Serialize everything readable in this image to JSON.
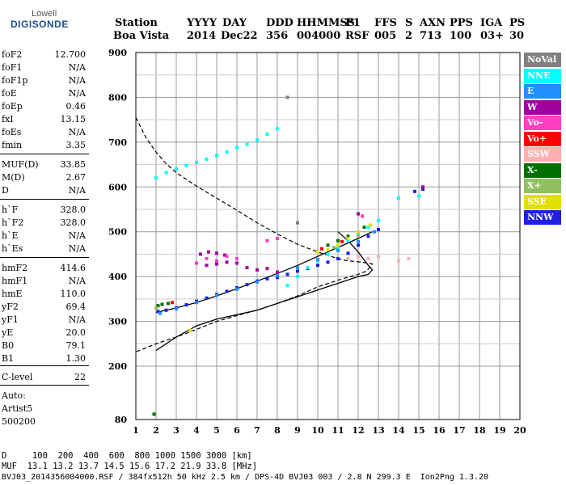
{
  "logo": {
    "line1": "Lowell",
    "line2": "DIGISONDE"
  },
  "header": {
    "labels": [
      "Station",
      "YYYY",
      "DAY",
      "DDD",
      "HHMMSS",
      "P1",
      "FFS",
      "S",
      "AXN",
      "PPS",
      "IGA",
      "PS"
    ],
    "values": [
      "Boa Vista",
      "2014",
      "Dec22",
      "356",
      "004000",
      "RSF",
      "005",
      "2",
      "713",
      "100",
      "03+",
      "30"
    ]
  },
  "params": [
    {
      "name": "foF2",
      "value": "12.700"
    },
    {
      "name": "foF1",
      "value": "N/A"
    },
    {
      "name": "foF1p",
      "value": "N/A"
    },
    {
      "name": "foE",
      "value": "N/A"
    },
    {
      "name": "foEp",
      "value": "0.46"
    },
    {
      "name": "fxI",
      "value": "13.15"
    },
    {
      "name": "foEs",
      "value": "N/A"
    },
    {
      "name": "fmin",
      "value": "3.35"
    },
    {
      "name": "MUF(D)",
      "value": "33.85"
    },
    {
      "name": "M(D)",
      "value": "2.67"
    },
    {
      "name": "D",
      "value": "N/A"
    },
    {
      "name": "h`F",
      "value": "328.0"
    },
    {
      "name": "h`F2",
      "value": "328.0"
    },
    {
      "name": "h`E",
      "value": "N/A"
    },
    {
      "name": "h`Es",
      "value": "N/A"
    },
    {
      "name": "hmF2",
      "value": "414.6"
    },
    {
      "name": "hmF1",
      "value": "N/A"
    },
    {
      "name": "hmE",
      "value": "110.0"
    },
    {
      "name": "yF2",
      "value": "69.4"
    },
    {
      "name": "yF1",
      "value": "N/A"
    },
    {
      "name": "yE",
      "value": "20.0"
    },
    {
      "name": "B0",
      "value": "79.1"
    },
    {
      "name": "B1",
      "value": "1.30"
    },
    {
      "name": "C-level",
      "value": "22"
    }
  ],
  "auto": {
    "line1": "Auto:",
    "line2": "Artist5",
    "line3": "500200"
  },
  "footer": {
    "d_row": "D     100  200  400  600  800 1000 1500 3000 [km]",
    "muf_row": "MUF  13.1 13.2 13.7 14.5 15.6 17.2 21.9 33.8 [MHz]",
    "file_row": "BVJ03_2014356004000.RSF / 384fx512h 50 kHz 2.5 km / DPS-4D BVJ03 003 / 2.8 N 299.3 E  Ion2Png 1.3.20"
  },
  "legend": [
    {
      "label": "NoVal",
      "color": "#808080"
    },
    {
      "label": "NNE",
      "color": "#00ffff"
    },
    {
      "label": "E",
      "color": "#1e90ff"
    },
    {
      "label": "W",
      "color": "#a000a0"
    },
    {
      "label": "Vo-",
      "color": "#ff40c0"
    },
    {
      "label": "Vo+",
      "color": "#ff0000"
    },
    {
      "label": "SSW",
      "color": "#ffb0b0"
    },
    {
      "label": "X-",
      "color": "#007000"
    },
    {
      "label": "X+",
      "color": "#90c060"
    },
    {
      "label": "SSE",
      "color": "#e0e000"
    },
    {
      "label": "NNW",
      "color": "#2020e0"
    }
  ],
  "chart_data": {
    "type": "scatter",
    "title": "",
    "xlabel": "",
    "ylabel": "",
    "xlim": [
      1,
      20
    ],
    "ylim": [
      80,
      900
    ],
    "x_ticks": [
      1,
      2,
      3,
      4,
      5,
      6,
      7,
      8,
      9,
      10,
      11,
      12,
      13,
      14,
      15,
      16,
      17,
      18,
      19,
      20
    ],
    "y_ticks": [
      80,
      200,
      300,
      400,
      500,
      600,
      700,
      800,
      900
    ],
    "grid": true,
    "legend_position": "right",
    "series": [
      {
        "color": "#2020e0",
        "points": [
          [
            2.1,
            322
          ],
          [
            2.5,
            325
          ],
          [
            3.0,
            330
          ],
          [
            3.5,
            337
          ],
          [
            4.0,
            345
          ],
          [
            4.5,
            352
          ],
          [
            5.0,
            360
          ],
          [
            5.5,
            367
          ],
          [
            6.0,
            375
          ],
          [
            6.5,
            382
          ],
          [
            7.0,
            390
          ],
          [
            7.5,
            395
          ],
          [
            8.0,
            398
          ],
          [
            8.5,
            405
          ],
          [
            9.0,
            412
          ],
          [
            9.5,
            418
          ],
          [
            10.0,
            425
          ],
          [
            10.5,
            432
          ],
          [
            11.0,
            440
          ],
          [
            11.5,
            452
          ],
          [
            12.0,
            470
          ],
          [
            12.5,
            490
          ],
          [
            13.0,
            505
          ],
          [
            14.8,
            590
          ],
          [
            15.2,
            595
          ]
        ]
      },
      {
        "color": "#00ffff",
        "points": [
          [
            2.0,
            620
          ],
          [
            2.5,
            632
          ],
          [
            3.0,
            640
          ],
          [
            3.5,
            648
          ],
          [
            4.0,
            655
          ],
          [
            4.5,
            662
          ],
          [
            5.0,
            670
          ],
          [
            5.5,
            678
          ],
          [
            6.0,
            688
          ],
          [
            6.5,
            695
          ],
          [
            7.0,
            705
          ],
          [
            7.5,
            718
          ],
          [
            8.0,
            730
          ],
          [
            8.5,
            380
          ],
          [
            9.0,
            400
          ],
          [
            9.5,
            420
          ],
          [
            10.0,
            435
          ],
          [
            10.5,
            450
          ],
          [
            11.0,
            465
          ],
          [
            11.5,
            480
          ],
          [
            12.0,
            495
          ],
          [
            12.5,
            510
          ],
          [
            13.0,
            525
          ],
          [
            14.0,
            575
          ],
          [
            15.0,
            580
          ]
        ]
      },
      {
        "color": "#1e90ff",
        "points": [
          [
            2.2,
            318
          ],
          [
            3.0,
            328
          ],
          [
            4.0,
            342
          ],
          [
            5.0,
            358
          ],
          [
            6.0,
            372
          ],
          [
            7.0,
            388
          ],
          [
            8.0,
            402
          ],
          [
            9.0,
            420
          ],
          [
            10.0,
            438
          ],
          [
            11.0,
            458
          ],
          [
            12.0,
            478
          ],
          [
            12.8,
            500
          ]
        ]
      },
      {
        "color": "#a000a0",
        "points": [
          [
            4.2,
            450
          ],
          [
            4.6,
            455
          ],
          [
            5.0,
            452
          ],
          [
            5.4,
            448
          ],
          [
            4.5,
            425
          ],
          [
            5.0,
            428
          ],
          [
            5.5,
            432
          ],
          [
            6.0,
            430
          ],
          [
            6.5,
            420
          ],
          [
            7.0,
            415
          ],
          [
            7.5,
            418
          ],
          [
            8.0,
            410
          ],
          [
            12.0,
            540
          ],
          [
            15.2,
            600
          ]
        ]
      },
      {
        "color": "#ff40c0",
        "points": [
          [
            4.0,
            430
          ],
          [
            4.5,
            440
          ],
          [
            5.0,
            435
          ],
          [
            5.5,
            445
          ],
          [
            6.0,
            440
          ],
          [
            7.5,
            480
          ],
          [
            8.0,
            485
          ],
          [
            12.2,
            535
          ]
        ]
      },
      {
        "color": "#007000",
        "points": [
          [
            2.1,
            335
          ],
          [
            2.3,
            338
          ],
          [
            2.6,
            340
          ],
          [
            10.5,
            470
          ],
          [
            11.0,
            480
          ],
          [
            11.5,
            490
          ],
          [
            12.3,
            510
          ],
          [
            1.9,
            92
          ]
        ]
      },
      {
        "color": "#e0e000",
        "points": [
          [
            10.0,
            455
          ],
          [
            10.5,
            460
          ],
          [
            11.0,
            470
          ],
          [
            11.5,
            485
          ],
          [
            12.0,
            500
          ],
          [
            12.6,
            515
          ],
          [
            3.7,
            280
          ]
        ]
      },
      {
        "color": "#ffb0b0",
        "points": [
          [
            11.5,
            440
          ],
          [
            12.0,
            445
          ],
          [
            12.5,
            440
          ],
          [
            13.0,
            445
          ],
          [
            14.0,
            435
          ],
          [
            14.5,
            440
          ]
        ]
      },
      {
        "color": "#ff0000",
        "points": [
          [
            2.8,
            342
          ],
          [
            10.2,
            462
          ],
          [
            11.2,
            478
          ]
        ]
      },
      {
        "color": "#90c060",
        "points": [
          [
            2.0,
            330
          ],
          [
            10.8,
            465
          ],
          [
            12.0,
            490
          ]
        ]
      },
      {
        "color": "#808080",
        "points": [
          [
            8.5,
            800
          ],
          [
            9.0,
            520
          ]
        ]
      }
    ],
    "curves": [
      {
        "name": "dashed",
        "style": "dashed",
        "points": [
          [
            1.0,
            755
          ],
          [
            1.5,
            710
          ],
          [
            2.0,
            678
          ],
          [
            2.5,
            652
          ],
          [
            3.0,
            632
          ],
          [
            4.0,
            602
          ],
          [
            5.0,
            575
          ],
          [
            6.0,
            548
          ],
          [
            7.0,
            520
          ],
          [
            8.0,
            495
          ],
          [
            9.0,
            472
          ],
          [
            10.0,
            455
          ],
          [
            11.0,
            440
          ],
          [
            11.5,
            435
          ],
          [
            12.0,
            433
          ],
          [
            12.5,
            430
          ],
          [
            12.7,
            428
          ],
          [
            12.4,
            412
          ],
          [
            12.0,
            405
          ],
          [
            11.0,
            392
          ],
          [
            10.0,
            377
          ],
          [
            9.0,
            357
          ],
          [
            8.0,
            340
          ],
          [
            7.0,
            325
          ],
          [
            6.0,
            313
          ],
          [
            5.0,
            300
          ],
          [
            4.0,
            282
          ],
          [
            3.0,
            265
          ],
          [
            2.0,
            250
          ],
          [
            1.0,
            232
          ]
        ]
      },
      {
        "name": "profile",
        "style": "solid",
        "points": [
          [
            2.0,
            235
          ],
          [
            3.0,
            265
          ],
          [
            4.0,
            290
          ],
          [
            5.0,
            305
          ],
          [
            6.0,
            315
          ],
          [
            7.0,
            325
          ],
          [
            8.0,
            340
          ],
          [
            9.0,
            355
          ],
          [
            10.0,
            370
          ],
          [
            11.0,
            385
          ],
          [
            12.0,
            400
          ],
          [
            12.5,
            405
          ],
          [
            12.7,
            415
          ],
          [
            12.5,
            425
          ],
          [
            12.0,
            455
          ],
          [
            11.5,
            480
          ],
          [
            11.0,
            500
          ]
        ]
      },
      {
        "name": "trace",
        "style": "solid",
        "points": [
          [
            2.0,
            320
          ],
          [
            3.0,
            330
          ],
          [
            4.0,
            342
          ],
          [
            5.0,
            357
          ],
          [
            6.0,
            373
          ],
          [
            7.0,
            390
          ],
          [
            8.0,
            407
          ],
          [
            9.0,
            425
          ],
          [
            10.0,
            445
          ],
          [
            11.0,
            465
          ],
          [
            12.0,
            485
          ],
          [
            12.7,
            500
          ]
        ]
      }
    ]
  }
}
